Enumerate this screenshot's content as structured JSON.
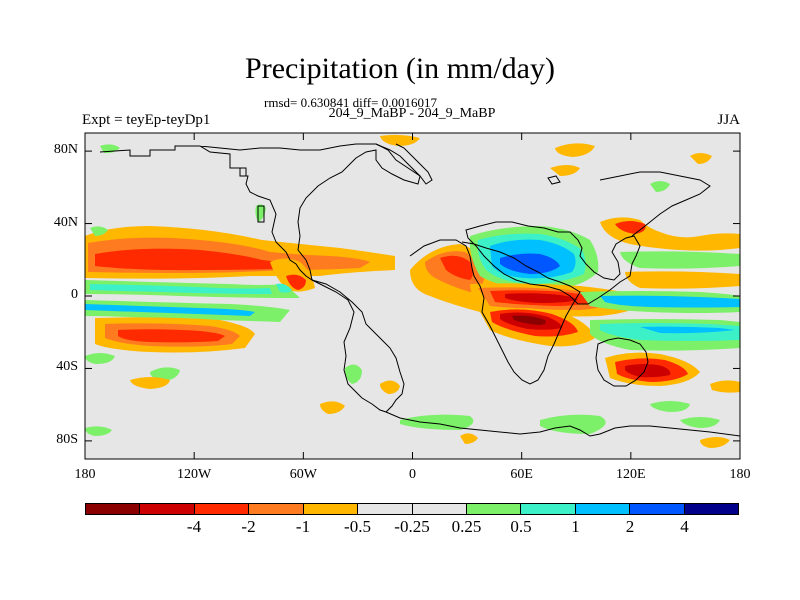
{
  "title": "Precipitation (in mm/day)",
  "subtitle": "rmsd= 0.630841  diff= 0.0016017",
  "center_label": "204_9_MaBP - 204_9_MaBP",
  "left_label": "Expt = teyEp-teyDp1",
  "right_label": "JJA",
  "map": {
    "lon_range": [
      -180,
      180
    ],
    "lat_range": [
      -90,
      90
    ],
    "x_ticks": [
      {
        "lon": -180,
        "label": "180"
      },
      {
        "lon": -120,
        "label": "120W"
      },
      {
        "lon": -60,
        "label": "60W"
      },
      {
        "lon": 0,
        "label": "0"
      },
      {
        "lon": 60,
        "label": "60E"
      },
      {
        "lon": 120,
        "label": "120E"
      },
      {
        "lon": 180,
        "label": "180"
      }
    ],
    "y_ticks": [
      {
        "lat": 80,
        "label": "80N"
      },
      {
        "lat": 40,
        "label": "40N"
      },
      {
        "lat": 0,
        "label": "0"
      },
      {
        "lat": -40,
        "label": "40S"
      },
      {
        "lat": -80,
        "label": "80S"
      }
    ]
  },
  "colorbar": {
    "colors": [
      "#8b0000",
      "#cc0000",
      "#ff2a00",
      "#ff7b1f",
      "#ffb700",
      "#e6e6e6",
      "#e6e6e6",
      "#7df06a",
      "#3cf0c8",
      "#00c0ff",
      "#0057ff",
      "#00008b"
    ],
    "labels": [
      {
        "boundary": 2,
        "text": "-4"
      },
      {
        "boundary": 3,
        "text": "-2"
      },
      {
        "boundary": 4,
        "text": "-1"
      },
      {
        "boundary": 5,
        "text": "-0.5"
      },
      {
        "boundary": 6,
        "text": "-0.25"
      },
      {
        "boundary": 7,
        "text": "0.25"
      },
      {
        "boundary": 8,
        "text": "0.5"
      },
      {
        "boundary": 9,
        "text": "1"
      },
      {
        "boundary": 10,
        "text": "2"
      },
      {
        "boundary": 11,
        "text": "4"
      }
    ]
  },
  "colors": {
    "background": "#e6e6e6",
    "coast": "#000000"
  }
}
